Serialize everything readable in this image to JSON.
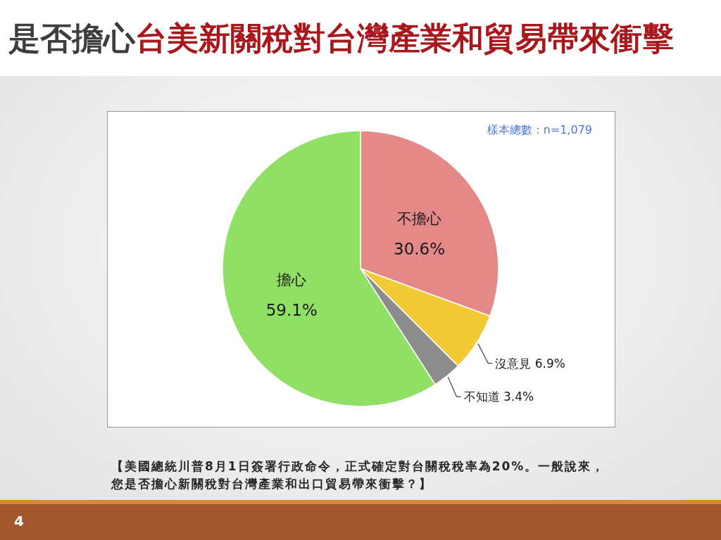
{
  "chart_data": {
    "type": "pie",
    "title": "是否擔心台美新關稅對台灣產業和貿易帶來衝擊",
    "categories": [
      "不擔心",
      "沒意見",
      "不知道",
      "擔心"
    ],
    "values": [
      30.6,
      6.9,
      3.4,
      59.1
    ],
    "colors": [
      "#e48888",
      "#f2ca35",
      "#8c8c8c",
      "#8fe065"
    ],
    "value_labels": [
      "30.6%",
      "6.9%",
      "3.4%",
      "59.1%"
    ],
    "annotations": [
      "樣本總數：n=1,079",
      "【美國總統川普8月1日簽署行政命令，正式確定對台關稅稅率為20%。一般說來，您是否擔心新關稅對台灣產業和出口貿易帶來衝擊？】",
      "4"
    ]
  }
}
